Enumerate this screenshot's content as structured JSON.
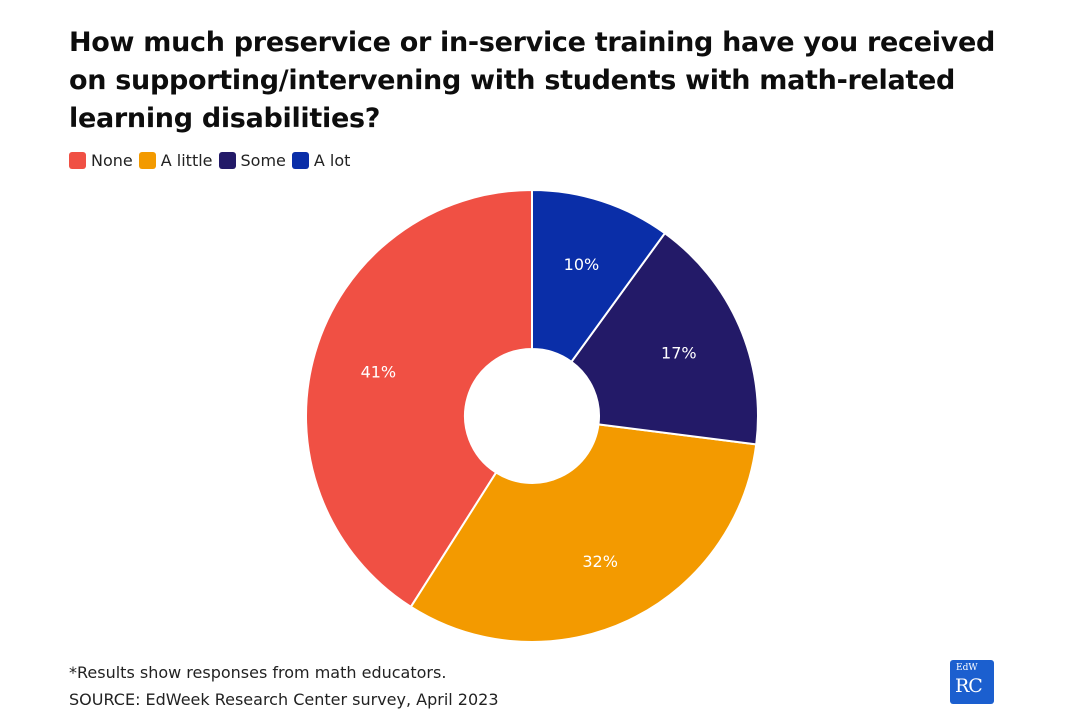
{
  "chart_data": {
    "type": "pie",
    "donut": true,
    "title": "How much preservice or in-service training have you received on supporting/intervening with students with math-related learning disabilities?",
    "categories": [
      "None",
      "A little",
      "Some",
      "A lot"
    ],
    "values": [
      41,
      32,
      17,
      10
    ],
    "data_labels": [
      "41%",
      "32%",
      "17%",
      "10%"
    ],
    "colors": [
      "#f05044",
      "#f39a00",
      "#231a68",
      "#0a2ea8"
    ],
    "legend_position": "top-left",
    "start_angle": "12 o'clock, counter-clockwise"
  },
  "footnote": {
    "note": "*Results show responses from math educators.",
    "source": "SOURCE: EdWeek Research Center survey, April 2023"
  },
  "logo": {
    "top": "EdW",
    "bottom": "RC"
  }
}
